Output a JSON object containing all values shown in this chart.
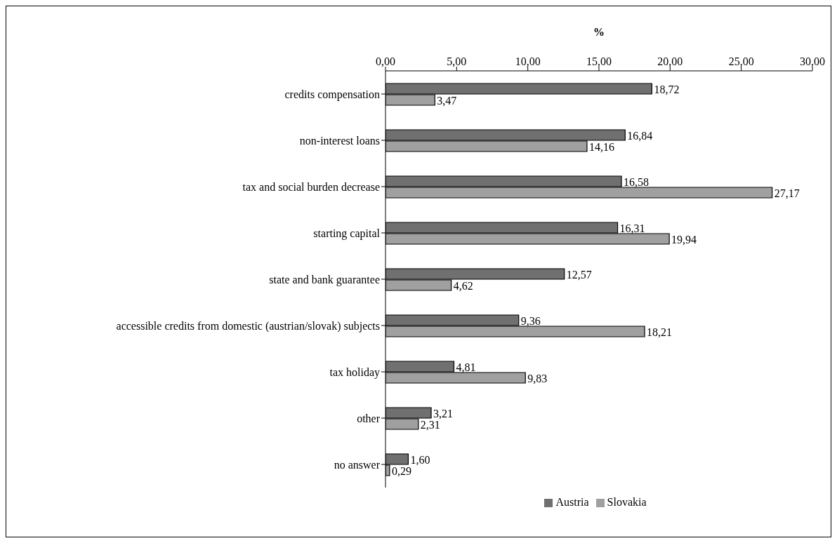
{
  "chart_data": {
    "type": "bar",
    "orientation": "horizontal",
    "xlabel": "%",
    "categories": [
      "credits compensation",
      "non-interest loans",
      "tax and social burden decrease",
      "starting capital",
      "state and bank guarantee",
      "accessible credits from domestic (austrian/slovak) subjects",
      "tax holiday",
      "other",
      "no answer"
    ],
    "series": [
      {
        "name": "Austria",
        "color": "#707070",
        "values": [
          18.72,
          16.84,
          16.58,
          16.31,
          12.57,
          9.36,
          4.81,
          3.21,
          1.6
        ],
        "value_labels": [
          "18,72",
          "16,84",
          "16,58",
          "16,31",
          "12,57",
          "9,36",
          "4,81",
          "3,21",
          "1,60"
        ]
      },
      {
        "name": "Slovakia",
        "color": "#a0a0a0",
        "values": [
          3.47,
          14.16,
          27.17,
          19.94,
          4.62,
          18.21,
          9.83,
          2.31,
          0.29
        ],
        "value_labels": [
          "3,47",
          "14,16",
          "27,17",
          "19,94",
          "4,62",
          "18,21",
          "9,83",
          "2,31",
          "0,29"
        ]
      }
    ],
    "xlim": [
      0,
      30
    ],
    "xticks": [
      {
        "value": 0,
        "label": "0,00"
      },
      {
        "value": 5,
        "label": "5,00"
      },
      {
        "value": 10,
        "label": "10,00"
      },
      {
        "value": 15,
        "label": "15,00"
      },
      {
        "value": 20,
        "label": "20,00"
      },
      {
        "value": 25,
        "label": "25,00"
      },
      {
        "value": 30,
        "label": "30,00"
      }
    ],
    "grid": false,
    "legend": "bottom"
  }
}
